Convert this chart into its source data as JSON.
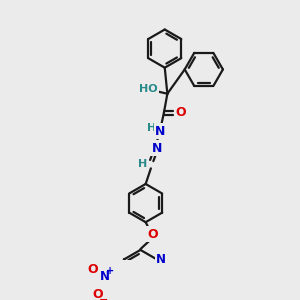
{
  "background_color": "#ebebeb",
  "bond_color": "#1a1a1a",
  "atom_colors": {
    "N": "#0000cc",
    "O": "#dd0000",
    "H": "#2a8a8a",
    "C": "#1a1a1a"
  },
  "figsize": [
    3.0,
    3.0
  ],
  "dpi": 100,
  "ring_r": 22,
  "lw": 1.6
}
